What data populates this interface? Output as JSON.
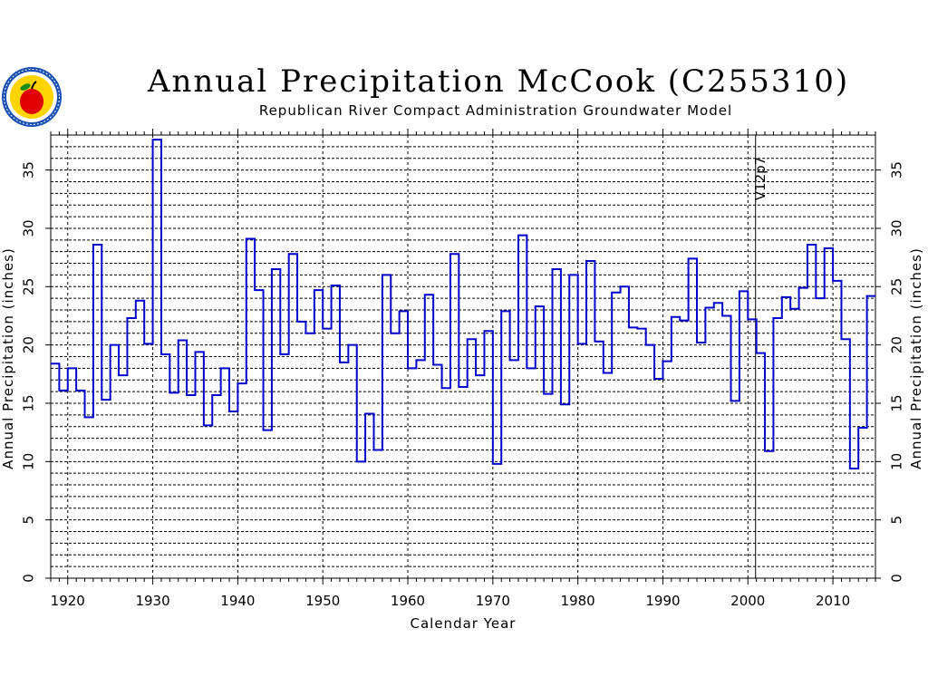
{
  "chart_data": {
    "type": "line",
    "style": "step",
    "title": "Annual Precipitation McCook (C255310)",
    "subtitle": "Republican River Compact Administration Groundwater Model",
    "xlabel": "Calendar Year",
    "ylabel": "Annual Precipitation (inches)",
    "xlim": [
      1918,
      2015
    ],
    "ylim": [
      0,
      38
    ],
    "x_ticks": [
      1920,
      1930,
      1940,
      1950,
      1960,
      1970,
      1980,
      1990,
      2000,
      2010
    ],
    "y_ticks": [
      0,
      5,
      10,
      15,
      20,
      25,
      30,
      35
    ],
    "grid": true,
    "series": [
      {
        "color": "#0000cc",
        "x_start": 1918,
        "values": [
          18.4,
          16.1,
          18.0,
          16.1,
          13.8,
          28.6,
          15.3,
          20.0,
          17.4,
          22.3,
          23.8,
          20.1,
          37.6,
          19.2,
          15.9,
          20.4,
          15.7,
          19.4,
          13.1,
          15.7,
          18.0,
          14.3,
          16.7,
          29.1,
          24.7,
          12.7,
          26.5,
          19.2,
          27.8,
          22.0,
          21.0,
          24.7,
          21.4,
          25.1,
          18.5,
          20.0,
          10.0,
          14.1,
          11.0,
          26.0,
          21.0,
          22.9,
          18.0,
          18.7,
          24.3,
          18.3,
          16.3,
          27.8,
          16.4,
          20.5,
          17.4,
          21.2,
          9.8,
          22.9,
          18.7,
          29.4,
          18.0,
          23.3,
          15.8,
          26.5,
          14.9,
          26.0,
          20.1,
          27.2,
          20.3,
          17.6,
          24.5,
          25.0,
          21.5,
          21.4,
          20.0,
          17.1,
          18.6,
          22.4,
          22.1,
          27.4,
          20.2,
          23.2,
          23.6,
          22.5,
          15.2,
          24.6,
          22.2,
          19.3,
          10.9,
          22.3,
          24.1,
          23.1,
          24.9,
          28.6,
          24.0,
          28.3,
          25.5,
          20.5,
          9.4,
          12.9,
          24.2
        ]
      }
    ],
    "annotations": [
      {
        "x": 2000.9,
        "text": "V12p7"
      }
    ]
  },
  "logo": {
    "name": "rrca-apple-seal",
    "colors": {
      "ring": "#1a4fb5",
      "fill": "#ffd400",
      "apple": "#e00000",
      "leaf": "#1a8a1a"
    }
  }
}
